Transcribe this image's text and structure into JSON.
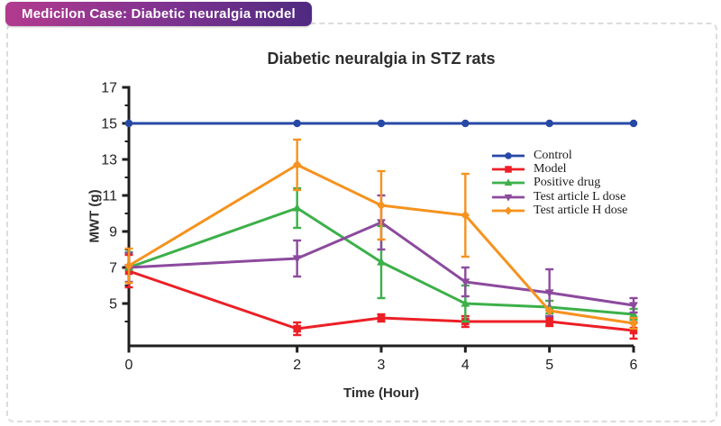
{
  "badge": {
    "label": "Medicilon Case: Diabetic neuralgia model",
    "gradient_from": "#b23a8e",
    "gradient_to": "#4f2a80"
  },
  "chart_data": {
    "type": "line",
    "title": "Diabetic neuralgia in STZ rats",
    "xlabel": "Time (Hour)",
    "ylabel": "MWT (g)",
    "x": [
      0,
      2,
      3,
      4,
      5,
      6
    ],
    "x_ticks": [
      0,
      2,
      3,
      4,
      5,
      6
    ],
    "y_ticks_major": [
      5,
      7,
      9,
      11,
      13,
      15,
      17
    ],
    "y_ticks_minor": [
      4,
      6,
      8,
      10,
      12,
      14,
      16
    ],
    "xlim": [
      0,
      6
    ],
    "ylim": [
      2.65,
      17
    ],
    "grid": false,
    "legend_position": "right",
    "axis_color": "#1f1f1f",
    "series": [
      {
        "name": "Control",
        "color": "#2749a6",
        "marker": "circle",
        "values": [
          15,
          15,
          15,
          15,
          15,
          15
        ],
        "errors": [
          0,
          0,
          0,
          0,
          0,
          0
        ]
      },
      {
        "name": "Model",
        "color": "#ec1f26",
        "marker": "square",
        "values": [
          6.8,
          3.6,
          4.2,
          4.0,
          4.0,
          3.5
        ],
        "errors": [
          0.9,
          0.35,
          0.2,
          0.3,
          0.25,
          0.45
        ]
      },
      {
        "name": "Positive drug",
        "color": "#3cb049",
        "marker": "triangle-up",
        "values": [
          7.0,
          10.3,
          7.3,
          5.0,
          4.8,
          4.4
        ],
        "errors": [
          0.85,
          1.1,
          2.0,
          1.0,
          0.35,
          0.3
        ]
      },
      {
        "name": "Test article L dose",
        "color": "#8c4a9d",
        "marker": "triangle-down",
        "values": [
          7.0,
          7.5,
          9.5,
          6.2,
          5.6,
          4.9
        ],
        "errors": [
          0.8,
          1.0,
          1.5,
          0.8,
          1.3,
          0.4
        ]
      },
      {
        "name": "Test article H dose",
        "color": "#f6921e",
        "marker": "diamond",
        "values": [
          7.1,
          12.7,
          10.45,
          9.9,
          4.6,
          3.9
        ],
        "errors": [
          0.95,
          1.4,
          1.9,
          2.3,
          0,
          0.3
        ]
      }
    ]
  }
}
